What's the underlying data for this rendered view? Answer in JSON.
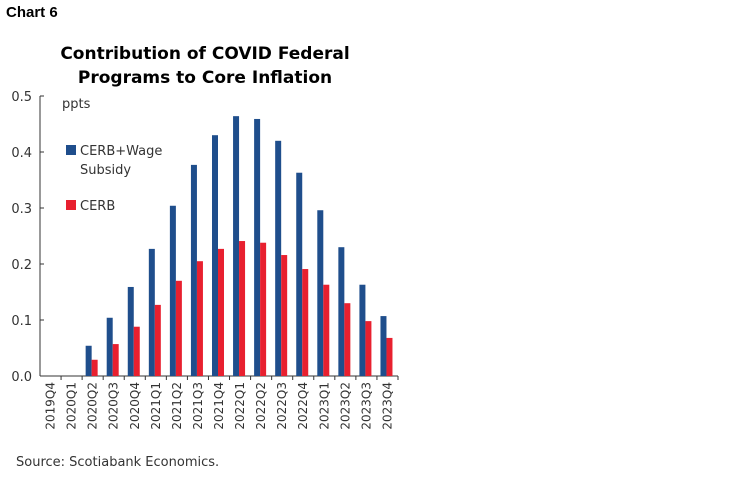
{
  "header": {
    "chart_label": "Chart 6"
  },
  "footer": {
    "source": "Source: Scotiabank Economics."
  },
  "chart_data": {
    "type": "bar",
    "title": "Contribution of COVID Federal Programs to Core Inflation",
    "ylabel": "ppts",
    "ylim": [
      0,
      0.5
    ],
    "yticks": [
      "0.0",
      "0.1",
      "0.2",
      "0.3",
      "0.4",
      "0.5"
    ],
    "grid": false,
    "legend_position": "top-left",
    "categories": [
      "2019Q4",
      "2020Q1",
      "2020Q2",
      "2020Q3",
      "2020Q4",
      "2021Q1",
      "2021Q2",
      "2021Q3",
      "2021Q4",
      "2022Q1",
      "2022Q2",
      "2022Q3",
      "2022Q4",
      "2023Q1",
      "2023Q2",
      "2023Q3",
      "2023Q4"
    ],
    "series": [
      {
        "name": "CERB+Wage Subsidy",
        "color": "#1f4e8c",
        "values": [
          0,
          0,
          0.054,
          0.104,
          0.159,
          0.227,
          0.304,
          0.377,
          0.43,
          0.464,
          0.459,
          0.42,
          0.363,
          0.296,
          0.23,
          0.163,
          0.107
        ]
      },
      {
        "name": "CERB",
        "color": "#e8202f",
        "values": [
          0,
          0,
          0.029,
          0.057,
          0.088,
          0.127,
          0.17,
          0.205,
          0.227,
          0.241,
          0.238,
          0.216,
          0.191,
          0.163,
          0.13,
          0.098,
          0.068
        ]
      }
    ]
  }
}
